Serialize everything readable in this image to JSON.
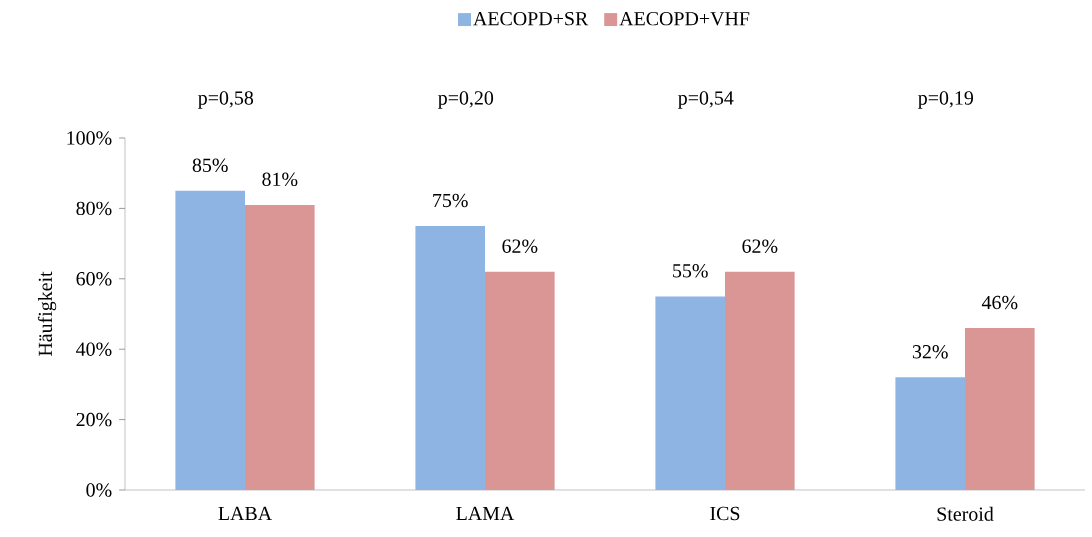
{
  "chart_data": {
    "type": "bar",
    "ylabel": "Häufigkeit",
    "categories": [
      "LABA",
      "LAMA",
      "ICS",
      "Steroid"
    ],
    "series": [
      {
        "name": "AECOPD+SR",
        "color": "#8eb4e3",
        "values": [
          85,
          75,
          55,
          32
        ],
        "value_labels": [
          "85%",
          "75%",
          "55%",
          "32%"
        ]
      },
      {
        "name": "AECOPD+VHF",
        "color": "#d99694",
        "values": [
          81,
          62,
          62,
          46
        ],
        "value_labels": [
          "81%",
          "62%",
          "62%",
          "46%"
        ]
      }
    ],
    "ylim": [
      0,
      100
    ],
    "yticks": [
      {
        "value": 0,
        "label": "0%"
      },
      {
        "value": 20,
        "label": "20%"
      },
      {
        "value": 40,
        "label": "40%"
      },
      {
        "value": 60,
        "label": "60%"
      },
      {
        "value": 80,
        "label": "80%"
      },
      {
        "value": 100,
        "label": "100%"
      }
    ],
    "annotations": [
      "p=0,58",
      "p=0,20",
      "p=0,54",
      "p=0,19"
    ],
    "legend": "top",
    "grid": false
  }
}
